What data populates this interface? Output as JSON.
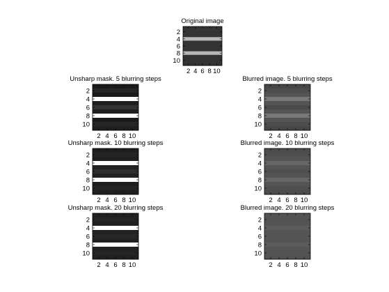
{
  "chart_data": [
    {
      "type": "heatmap",
      "title": "Original image",
      "xticks": [
        "2",
        "4",
        "6",
        "8",
        "10"
      ],
      "yticks": [
        "2",
        "4",
        "6",
        "8",
        "10"
      ],
      "rows": [
        0.2,
        0.2,
        0.2,
        0.72,
        0.2,
        0.2,
        0.2,
        0.72,
        0.2,
        0.2,
        0.2
      ]
    },
    {
      "type": "heatmap",
      "title": "Unsharp mask. 5 blurring steps",
      "xticks": [
        "2",
        "4",
        "6",
        "8",
        "10"
      ],
      "yticks": [
        "2",
        "4",
        "6",
        "8",
        "10"
      ],
      "rows": [
        0.1,
        0.15,
        0.1,
        1.0,
        0.12,
        0.2,
        0.12,
        1.0,
        0.1,
        0.15,
        0.12
      ]
    },
    {
      "type": "heatmap",
      "title": "Blurred image. 5 blurring steps",
      "xticks": [
        "2",
        "4",
        "6",
        "8",
        "10"
      ],
      "yticks": [
        "2",
        "4",
        "6",
        "8",
        "10"
      ],
      "rows": [
        0.28,
        0.3,
        0.33,
        0.47,
        0.33,
        0.29,
        0.33,
        0.47,
        0.33,
        0.3,
        0.28
      ]
    },
    {
      "type": "heatmap",
      "title": "Unsharp mask. 10 blurring steps",
      "xticks": [
        "2",
        "4",
        "6",
        "8",
        "10"
      ],
      "yticks": [
        "2",
        "4",
        "6",
        "8",
        "10"
      ],
      "rows": [
        0.12,
        0.14,
        0.12,
        1.0,
        0.13,
        0.18,
        0.13,
        1.0,
        0.12,
        0.14,
        0.12
      ]
    },
    {
      "type": "heatmap",
      "title": "Blurred image. 10 blurring steps",
      "xticks": [
        "2",
        "4",
        "6",
        "8",
        "10"
      ],
      "yticks": [
        "2",
        "4",
        "6",
        "8",
        "10"
      ],
      "rows": [
        0.3,
        0.31,
        0.33,
        0.4,
        0.33,
        0.31,
        0.33,
        0.4,
        0.33,
        0.31,
        0.3
      ]
    },
    {
      "type": "heatmap",
      "title": "Unsharp mask. 20 blurring steps",
      "xticks": [
        "2",
        "4",
        "6",
        "8",
        "10"
      ],
      "yticks": [
        "2",
        "4",
        "6",
        "8",
        "10"
      ],
      "rows": [
        0.13,
        0.14,
        0.13,
        1.0,
        0.13,
        0.15,
        0.13,
        1.0,
        0.13,
        0.14,
        0.13
      ]
    },
    {
      "type": "heatmap",
      "title": "Blurred image. 20 blurring steps",
      "xticks": [
        "2",
        "4",
        "6",
        "8",
        "10"
      ],
      "yticks": [
        "2",
        "4",
        "6",
        "8",
        "10"
      ],
      "rows": [
        0.32,
        0.32,
        0.33,
        0.36,
        0.33,
        0.33,
        0.33,
        0.36,
        0.33,
        0.32,
        0.32
      ]
    }
  ]
}
